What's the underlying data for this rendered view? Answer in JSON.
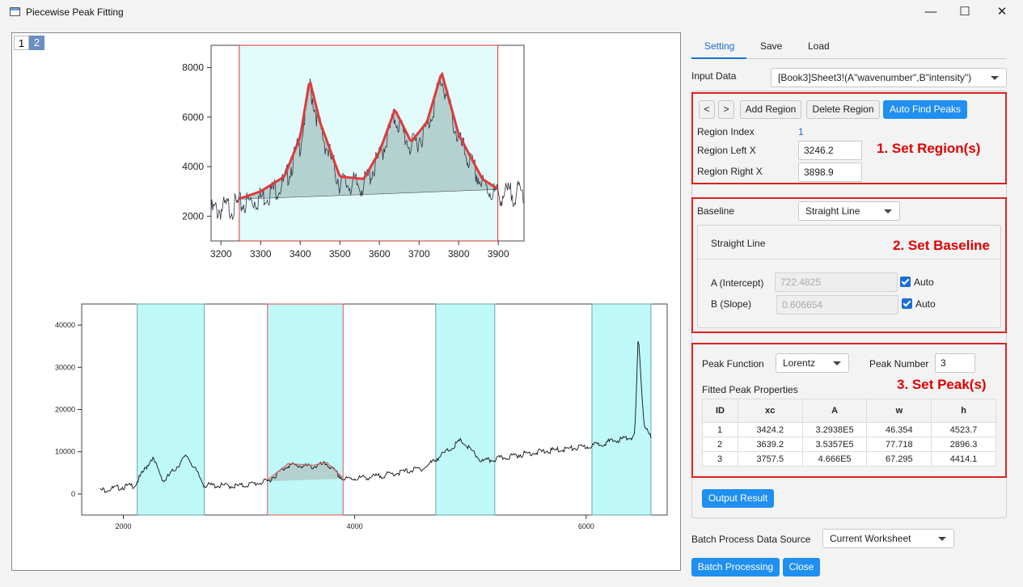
{
  "window": {
    "title": "Piecewise Peak Fitting",
    "minimize": "—",
    "maximize": "☐",
    "close": "✕"
  },
  "graph": {
    "layers": [
      "1",
      "2"
    ],
    "top_chart": {
      "x_ticks": [
        "3200",
        "3300",
        "3400",
        "3500",
        "3600",
        "3700",
        "3800",
        "3900"
      ],
      "y_ticks": [
        "2000",
        "4000",
        "6000",
        "8000"
      ],
      "region": [
        3246.2,
        3898.9
      ]
    },
    "bottom_chart": {
      "x_ticks": [
        "2000",
        "4000",
        "6000"
      ],
      "y_ticks": [
        "0",
        "10000",
        "20000",
        "30000",
        "40000"
      ],
      "regions": [
        [
          2120,
          2700
        ],
        [
          3246,
          3899
        ],
        [
          4700,
          5210
        ],
        [
          6050,
          6560
        ]
      ]
    }
  },
  "chart_data": [
    {
      "type": "line",
      "series": [
        {
          "name": "",
          "x": [
            3175,
            3246,
            3300,
            3360,
            3400,
            3424,
            3450,
            3500,
            3560,
            3600,
            3639,
            3680,
            3720,
            3757,
            3800,
            3860,
            3899,
            3960
          ],
          "values": [
            2450,
            2700,
            3000,
            3600,
            5200,
            7500,
            5800,
            3600,
            3500,
            4600,
            6300,
            5000,
            5800,
            7800,
            5300,
            3500,
            3100,
            3200
          ]
        }
      ],
      "xlim": [
        3175,
        3965
      ],
      "ylim": [
        1000,
        8900
      ]
    },
    {
      "type": "line",
      "series": [
        {
          "name": "",
          "x": [
            1800,
            2100,
            2250,
            2350,
            2550,
            2700,
            3000,
            3246,
            3424,
            3639,
            3757,
            3899,
            4200,
            4600,
            4920,
            5100,
            5500,
            6000,
            6420,
            6450,
            6500,
            6560
          ],
          "values": [
            1200,
            2400,
            9000,
            3300,
            9500,
            2400,
            2200,
            3300,
            7200,
            6800,
            7500,
            3800,
            4500,
            6500,
            13000,
            8000,
            10000,
            11500,
            14000,
            37500,
            17000,
            13500
          ]
        }
      ],
      "xlim": [
        1640,
        6700
      ],
      "ylim": [
        -5000,
        45000
      ]
    }
  ],
  "panel": {
    "tabs": [
      "Setting",
      "Save",
      "Load"
    ],
    "input_data_label": "Input Data",
    "input_data_value": "[Book3]Sheet3!(A\"wavenumber\",B\"intensity\")",
    "region": {
      "prev": "<",
      "next": ">",
      "add": "Add Region",
      "delete": "Delete Region",
      "auto_find": "Auto Find Peaks",
      "index_label": "Region Index",
      "index_value": "1",
      "left_label": "Region Left X",
      "left_value": "3246.2",
      "right_label": "Region Right X",
      "right_value": "3898.9",
      "annotation": "1. Set Region(s)"
    },
    "baseline": {
      "label": "Baseline",
      "value": "Straight Line",
      "group_title": "Straight Line",
      "a_label": "A (Intercept)",
      "a_value": "722.4825",
      "b_label": "B (Slope)",
      "b_value": "0.606654",
      "auto_label": "Auto",
      "annotation": "2. Set Baseline"
    },
    "peak": {
      "function_label": "Peak Function",
      "function_value": "Lorentz",
      "number_label": "Peak Number",
      "number_value": "3",
      "props_label": "Fitted Peak Properties",
      "annotation": "3. Set Peak(s)",
      "columns": [
        "ID",
        "xc",
        "A",
        "w",
        "h"
      ],
      "rows": [
        [
          "1",
          "3424.2",
          "3.2938E5",
          "46.354",
          "4523.7"
        ],
        [
          "2",
          "3639.2",
          "3.5357E5",
          "77.718",
          "2896.3"
        ],
        [
          "3",
          "3757.5",
          "4.666E5",
          "67.295",
          "4414.1"
        ]
      ],
      "output_button": "Output Result"
    },
    "batch": {
      "source_label": "Batch Process Data Source",
      "source_value": "Current Worksheet",
      "process_button": "Batch Processing",
      "close_button": "Close"
    }
  }
}
